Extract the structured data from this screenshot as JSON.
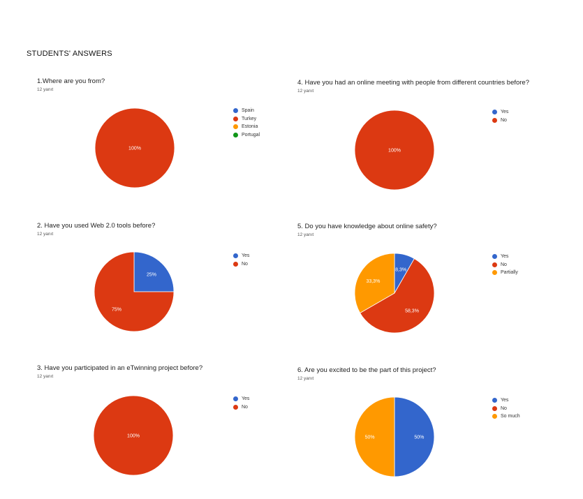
{
  "page_title": "STUDENTS' ANSWERS",
  "colors": {
    "blue": "#3366cc",
    "red": "#dc3912",
    "orange": "#ff9900",
    "green": "#109618"
  },
  "chart_data": [
    {
      "type": "pie",
      "title": "1.Where are you from?",
      "subtitle": "12 yanıt",
      "legend_position": "right",
      "slices": [
        {
          "label": "Spain",
          "value": 0,
          "color": "#3366cc",
          "display": ""
        },
        {
          "label": "Turkey",
          "value": 100,
          "color": "#dc3912",
          "display": "100%"
        },
        {
          "label": "Estonia",
          "value": 0,
          "color": "#ff9900",
          "display": ""
        },
        {
          "label": "Portugal",
          "value": 0,
          "color": "#109618",
          "display": ""
        }
      ]
    },
    {
      "type": "pie",
      "title": "4. Have you had an online meeting with people from different countries  before?",
      "subtitle": "12 yanıt",
      "legend_position": "right",
      "slices": [
        {
          "label": "Yes",
          "value": 0,
          "color": "#3366cc",
          "display": ""
        },
        {
          "label": "No",
          "value": 100,
          "color": "#dc3912",
          "display": "100%"
        }
      ]
    },
    {
      "type": "pie",
      "title": "2. Have you used Web 2.0 tools before?",
      "subtitle": "12 yanıt",
      "legend_position": "right",
      "slices": [
        {
          "label": "Yes",
          "value": 25,
          "color": "#3366cc",
          "display": "25%"
        },
        {
          "label": "No",
          "value": 75,
          "color": "#dc3912",
          "display": "75%"
        }
      ]
    },
    {
      "type": "pie",
      "title": "5. Do you have knowledge about online safety?",
      "subtitle": "12 yanıt",
      "legend_position": "right",
      "slices": [
        {
          "label": "Yes",
          "value": 8.3,
          "color": "#3366cc",
          "display": "8,3%"
        },
        {
          "label": "No",
          "value": 58.3,
          "color": "#dc3912",
          "display": "58,3%"
        },
        {
          "label": "Partially",
          "value": 33.3,
          "color": "#ff9900",
          "display": "33,3%"
        }
      ]
    },
    {
      "type": "pie",
      "title": "3. Have you participated in an eTwinning project before?",
      "subtitle": "12 yanıt",
      "legend_position": "right",
      "slices": [
        {
          "label": "Yes",
          "value": 0,
          "color": "#3366cc",
          "display": ""
        },
        {
          "label": "No",
          "value": 100,
          "color": "#dc3912",
          "display": "100%"
        }
      ]
    },
    {
      "type": "pie",
      "title": "6. Are you excited to be the part of this project?",
      "subtitle": "12 yanıt",
      "legend_position": "right",
      "slices": [
        {
          "label": "Yes",
          "value": 50,
          "color": "#3366cc",
          "display": "50%"
        },
        {
          "label": "No",
          "value": 0,
          "color": "#dc3912",
          "display": ""
        },
        {
          "label": "So much",
          "value": 50,
          "color": "#ff9900",
          "display": "50%"
        }
      ]
    }
  ]
}
